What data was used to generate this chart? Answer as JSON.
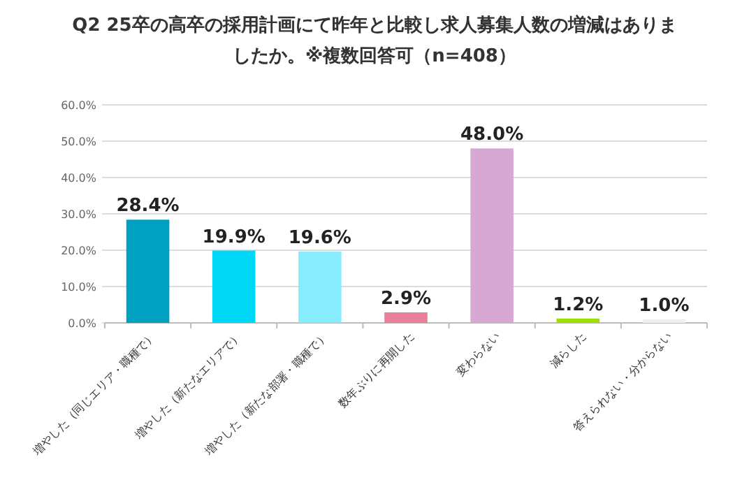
{
  "chart_data": {
    "type": "bar",
    "title": "Q2 25卒の高卒の採用計画にて昨年と比較し求人募集人数の増減はありましたか。※複数回答可（n=408）",
    "categories": [
      "増やした（同じエリア・職種で）",
      "増やした（新たなエリアで）",
      "増やした（新たな部署・職種で）",
      "数年ぶりに再開した",
      "変わらない",
      "減らした",
      "答えられない・分からない"
    ],
    "values": [
      28.4,
      19.9,
      19.6,
      2.9,
      48.0,
      1.2,
      1.0
    ],
    "value_labels": [
      "28.4%",
      "19.9%",
      "19.6%",
      "2.9%",
      "48.0%",
      "1.2%",
      "1.0%"
    ],
    "colors": [
      "#00a0c0",
      "#00d8f8",
      "#88ecff",
      "#e8809a",
      "#d8a8d4",
      "#a0e000",
      "#f0f0f0"
    ],
    "ylim": [
      0,
      60
    ],
    "yticks": [
      {
        "value": 0,
        "label": "0.0%"
      },
      {
        "value": 10,
        "label": "10.0%"
      },
      {
        "value": 20,
        "label": "20.0%"
      },
      {
        "value": 30,
        "label": "30.0%"
      },
      {
        "value": 40,
        "label": "40.0%"
      },
      {
        "value": 50,
        "label": "50.0%"
      },
      {
        "value": 60,
        "label": "60.0%"
      }
    ],
    "grid": "y"
  }
}
